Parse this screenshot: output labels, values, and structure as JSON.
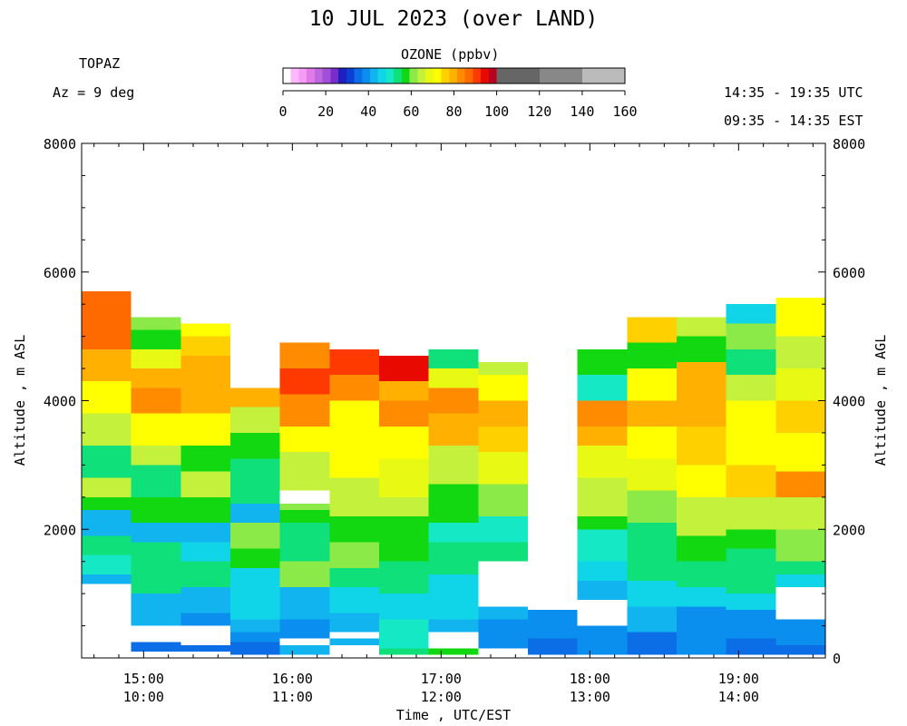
{
  "title": "10 JUL 2023 (over LAND)",
  "instrument": "TOPAZ",
  "azimuth": "Az =   9 deg",
  "time_utc": "14:35 - 19:35 UTC",
  "time_est": "09:35 - 14:35 EST",
  "colorbar": {
    "title": "OZONE (ppbv)",
    "ticks": [
      "0",
      "20",
      "40",
      "60",
      "80",
      "100",
      "120",
      "140",
      "160"
    ],
    "colors": [
      "#ffffff",
      "#ffb8ff",
      "#f59cf5",
      "#e07ae8",
      "#c066e0",
      "#a050d8",
      "#7a2ccc",
      "#2020c0",
      "#0b3fd6",
      "#0b6ee6",
      "#0b8fee",
      "#12b4f0",
      "#10d4e8",
      "#14e8c4",
      "#10e07a",
      "#12d812",
      "#8cea48",
      "#c4f23c",
      "#e8fa14",
      "#ffff00",
      "#ffd000",
      "#ffb000",
      "#ff8c00",
      "#ff6a00",
      "#ff3a00",
      "#e80a00",
      "#b80020",
      "#666666",
      "#888888",
      "#bbbbbb"
    ]
  },
  "axes": {
    "ylabel_left": "Altitude , m ASL",
    "ylabel_right": "Altitude , m AGL",
    "xlabel": "Time , UTC/EST",
    "yticks_left": [
      "2000",
      "4000",
      "6000",
      "8000"
    ],
    "yticks_right": [
      "0",
      "2000",
      "4000",
      "6000",
      "8000"
    ],
    "xticks_utc": [
      "15:00",
      "16:00",
      "17:00",
      "18:00",
      "19:00"
    ],
    "xticks_est": [
      "10:00",
      "11:00",
      "12:00",
      "13:00",
      "14:00"
    ]
  },
  "chart_data": {
    "type": "heatmap",
    "title": "10 JUL 2023 (over LAND)",
    "xlabel": "Time , UTC/EST",
    "ylabel": "Altitude , m ASL",
    "y2label": "Altitude , m AGL",
    "ylim": [
      0,
      8000
    ],
    "xlim_utc": [
      "14:35",
      "19:35"
    ],
    "value_label": "OZONE (ppbv)",
    "value_range": [
      0,
      160
    ],
    "column_width_minutes": 20,
    "columns": [
      {
        "start": "14:35",
        "profile": [
          [
            1150,
            1300,
            44
          ],
          [
            1300,
            1600,
            50
          ],
          [
            1600,
            1900,
            52
          ],
          [
            1900,
            2300,
            44
          ],
          [
            2300,
            2500,
            56
          ],
          [
            2500,
            2800,
            63
          ],
          [
            2800,
            3300,
            54
          ],
          [
            3300,
            3800,
            66
          ],
          [
            3800,
            4300,
            73
          ],
          [
            4300,
            4800,
            80
          ],
          [
            4800,
            5300,
            86
          ],
          [
            5300,
            5700,
            88
          ]
        ]
      },
      {
        "start": "14:55",
        "profile": [
          [
            100,
            250,
            34
          ],
          [
            500,
            700,
            44
          ],
          [
            700,
            1000,
            44
          ],
          [
            1000,
            1500,
            53
          ],
          [
            1500,
            1800,
            54
          ],
          [
            1800,
            2100,
            44
          ],
          [
            2100,
            2500,
            56
          ],
          [
            2500,
            3000,
            54
          ],
          [
            3000,
            3300,
            64
          ],
          [
            3300,
            3800,
            74
          ],
          [
            3800,
            4200,
            82
          ],
          [
            4200,
            4500,
            80
          ],
          [
            4500,
            4800,
            68
          ],
          [
            4800,
            5100,
            56
          ],
          [
            5100,
            5300,
            60
          ]
        ]
      },
      {
        "start": "15:15",
        "profile": [
          [
            100,
            200,
            34
          ],
          [
            500,
            700,
            40
          ],
          [
            700,
            900,
            42
          ],
          [
            900,
            1100,
            42
          ],
          [
            1100,
            1500,
            54
          ],
          [
            1500,
            1800,
            46
          ],
          [
            1800,
            2100,
            44
          ],
          [
            2100,
            2500,
            56
          ],
          [
            2500,
            2900,
            64
          ],
          [
            2900,
            3300,
            56
          ],
          [
            3300,
            3800,
            74
          ],
          [
            3800,
            4300,
            78
          ],
          [
            4300,
            4700,
            80
          ],
          [
            4700,
            5000,
            76
          ],
          [
            5000,
            5200,
            74
          ]
        ]
      },
      {
        "start": "15:35",
        "profile": [
          [
            50,
            250,
            36
          ],
          [
            250,
            400,
            40
          ],
          [
            400,
            600,
            42
          ],
          [
            600,
            1000,
            46
          ],
          [
            1000,
            1400,
            48
          ],
          [
            1400,
            1700,
            58
          ],
          [
            1700,
            2100,
            62
          ],
          [
            2100,
            2400,
            44
          ],
          [
            2400,
            3100,
            54
          ],
          [
            3100,
            3500,
            56
          ],
          [
            3500,
            3900,
            66
          ],
          [
            3900,
            4200,
            80
          ]
        ]
      },
      {
        "start": "15:55",
        "profile": [
          [
            50,
            200,
            44
          ],
          [
            300,
            600,
            40
          ],
          [
            600,
            1100,
            44
          ],
          [
            1100,
            1500,
            60
          ],
          [
            1500,
            1800,
            54
          ],
          [
            1800,
            2100,
            52
          ],
          [
            2100,
            2300,
            56
          ],
          [
            2300,
            2400,
            60
          ],
          [
            2600,
            3200,
            64
          ],
          [
            3200,
            3600,
            72
          ],
          [
            3600,
            4100,
            84
          ],
          [
            4100,
            4500,
            92
          ],
          [
            4500,
            4900,
            82
          ]
        ]
      },
      {
        "start": "16:15",
        "profile": [
          [
            200,
            300,
            44
          ],
          [
            400,
            700,
            42
          ],
          [
            700,
            1100,
            48
          ],
          [
            1100,
            1400,
            54
          ],
          [
            1400,
            1800,
            62
          ],
          [
            1800,
            2200,
            56
          ],
          [
            2200,
            2800,
            66
          ],
          [
            2800,
            3400,
            72
          ],
          [
            3400,
            4000,
            74
          ],
          [
            4000,
            4400,
            84
          ],
          [
            4400,
            4800,
            90
          ]
        ]
      },
      {
        "start": "16:35",
        "profile": [
          [
            50,
            150,
            54
          ],
          [
            150,
            600,
            50
          ],
          [
            600,
            1000,
            48
          ],
          [
            1000,
            1500,
            54
          ],
          [
            1500,
            2200,
            56
          ],
          [
            2200,
            2500,
            66
          ],
          [
            2500,
            3100,
            68
          ],
          [
            3100,
            3600,
            74
          ],
          [
            3600,
            4000,
            84
          ],
          [
            4000,
            4300,
            80
          ],
          [
            4300,
            4700,
            96
          ]
        ]
      },
      {
        "start": "16:55",
        "profile": [
          [
            50,
            150,
            56
          ],
          [
            400,
            600,
            44
          ],
          [
            600,
            1300,
            48
          ],
          [
            1300,
            1800,
            52
          ],
          [
            1800,
            2100,
            50
          ],
          [
            2100,
            2700,
            58
          ],
          [
            2700,
            3300,
            66
          ],
          [
            3300,
            3800,
            78
          ],
          [
            3800,
            4200,
            82
          ],
          [
            4200,
            4500,
            70
          ],
          [
            4500,
            4800,
            54
          ]
        ]
      },
      {
        "start": "17:15",
        "profile": [
          [
            150,
            600,
            40
          ],
          [
            600,
            800,
            42
          ],
          [
            1500,
            1800,
            52
          ],
          [
            1800,
            2200,
            50
          ],
          [
            2200,
            2700,
            62
          ],
          [
            2700,
            3200,
            68
          ],
          [
            3200,
            3600,
            76
          ],
          [
            3600,
            4000,
            80
          ],
          [
            4000,
            4400,
            74
          ],
          [
            4400,
            4600,
            64
          ]
        ]
      },
      {
        "start": "17:35",
        "profile": [
          [
            50,
            300,
            36
          ],
          [
            300,
            600,
            38
          ],
          [
            600,
            750,
            38
          ]
        ]
      },
      {
        "start": "17:55",
        "profile": [
          [
            50,
            200,
            38
          ],
          [
            200,
            500,
            40
          ],
          [
            900,
            1200,
            44
          ],
          [
            1200,
            1500,
            46
          ],
          [
            1500,
            2000,
            50
          ],
          [
            2000,
            2200,
            56
          ],
          [
            2200,
            2800,
            64
          ],
          [
            2800,
            3300,
            68
          ],
          [
            3300,
            3600,
            78
          ],
          [
            3600,
            4000,
            82
          ],
          [
            4000,
            4400,
            50
          ],
          [
            4400,
            4800,
            58
          ]
        ]
      },
      {
        "start": "18:15",
        "profile": [
          [
            50,
            400,
            36
          ],
          [
            400,
            800,
            44
          ],
          [
            800,
            1200,
            48
          ],
          [
            1200,
            1600,
            52
          ],
          [
            1600,
            2100,
            52
          ],
          [
            2100,
            2600,
            62
          ],
          [
            2600,
            3100,
            68
          ],
          [
            3100,
            3600,
            72
          ],
          [
            3600,
            4000,
            78
          ],
          [
            4000,
            4500,
            74
          ],
          [
            4500,
            4900,
            58
          ],
          [
            4900,
            5300,
            76
          ]
        ]
      },
      {
        "start": "18:35",
        "profile": [
          [
            50,
            400,
            38
          ],
          [
            400,
            800,
            38
          ],
          [
            800,
            1100,
            48
          ],
          [
            1100,
            1500,
            54
          ],
          [
            1500,
            1900,
            56
          ],
          [
            1900,
            2500,
            64
          ],
          [
            2500,
            3000,
            72
          ],
          [
            3000,
            3600,
            76
          ],
          [
            3600,
            4200,
            78
          ],
          [
            4200,
            4600,
            80
          ],
          [
            4600,
            5000,
            56
          ],
          [
            5000,
            5300,
            66
          ]
        ]
      },
      {
        "start": "18:55",
        "profile": [
          [
            50,
            300,
            36
          ],
          [
            300,
            750,
            38
          ],
          [
            750,
            1000,
            46
          ],
          [
            1000,
            1300,
            52
          ],
          [
            1300,
            1700,
            54
          ],
          [
            1700,
            2000,
            58
          ],
          [
            2000,
            2500,
            66
          ],
          [
            2500,
            3000,
            76
          ],
          [
            3000,
            3600,
            72
          ],
          [
            3600,
            4000,
            74
          ],
          [
            4000,
            4400,
            66
          ],
          [
            4400,
            4800,
            54
          ],
          [
            4800,
            5200,
            62
          ],
          [
            5200,
            5500,
            48
          ]
        ]
      },
      {
        "start": "19:15",
        "profile": [
          [
            50,
            200,
            36
          ],
          [
            200,
            600,
            40
          ],
          [
            1100,
            1300,
            46
          ],
          [
            1300,
            1500,
            52
          ],
          [
            1500,
            2000,
            62
          ],
          [
            2000,
            2500,
            66
          ],
          [
            2500,
            2900,
            84
          ],
          [
            2900,
            3500,
            72
          ],
          [
            3500,
            4000,
            76
          ],
          [
            4000,
            4500,
            70
          ],
          [
            4500,
            5000,
            64
          ],
          [
            5000,
            5600,
            74
          ]
        ]
      }
    ]
  }
}
